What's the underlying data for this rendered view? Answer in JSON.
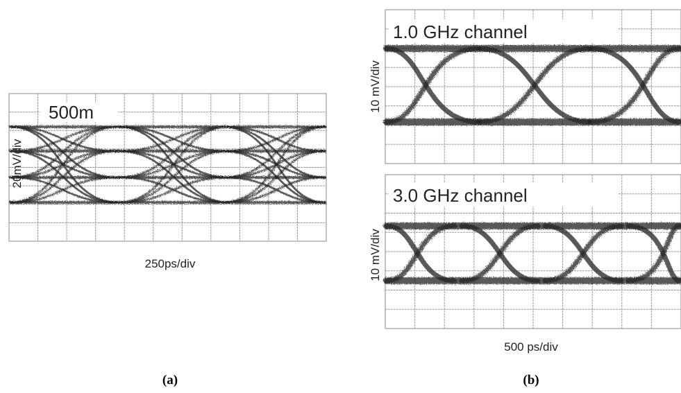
{
  "panel_a": {
    "annotation": "500m",
    "y_label": "20mV/div",
    "x_label": "250ps/div",
    "caption": "(a)"
  },
  "panel_b": {
    "plots": [
      {
        "annotation": "1.0 GHz channel",
        "y_label": "10 mV/div"
      },
      {
        "annotation": "3.0 GHz channel",
        "y_label": "10 mV/div"
      }
    ],
    "x_label": "500 ps/div",
    "caption": "(b)"
  }
}
